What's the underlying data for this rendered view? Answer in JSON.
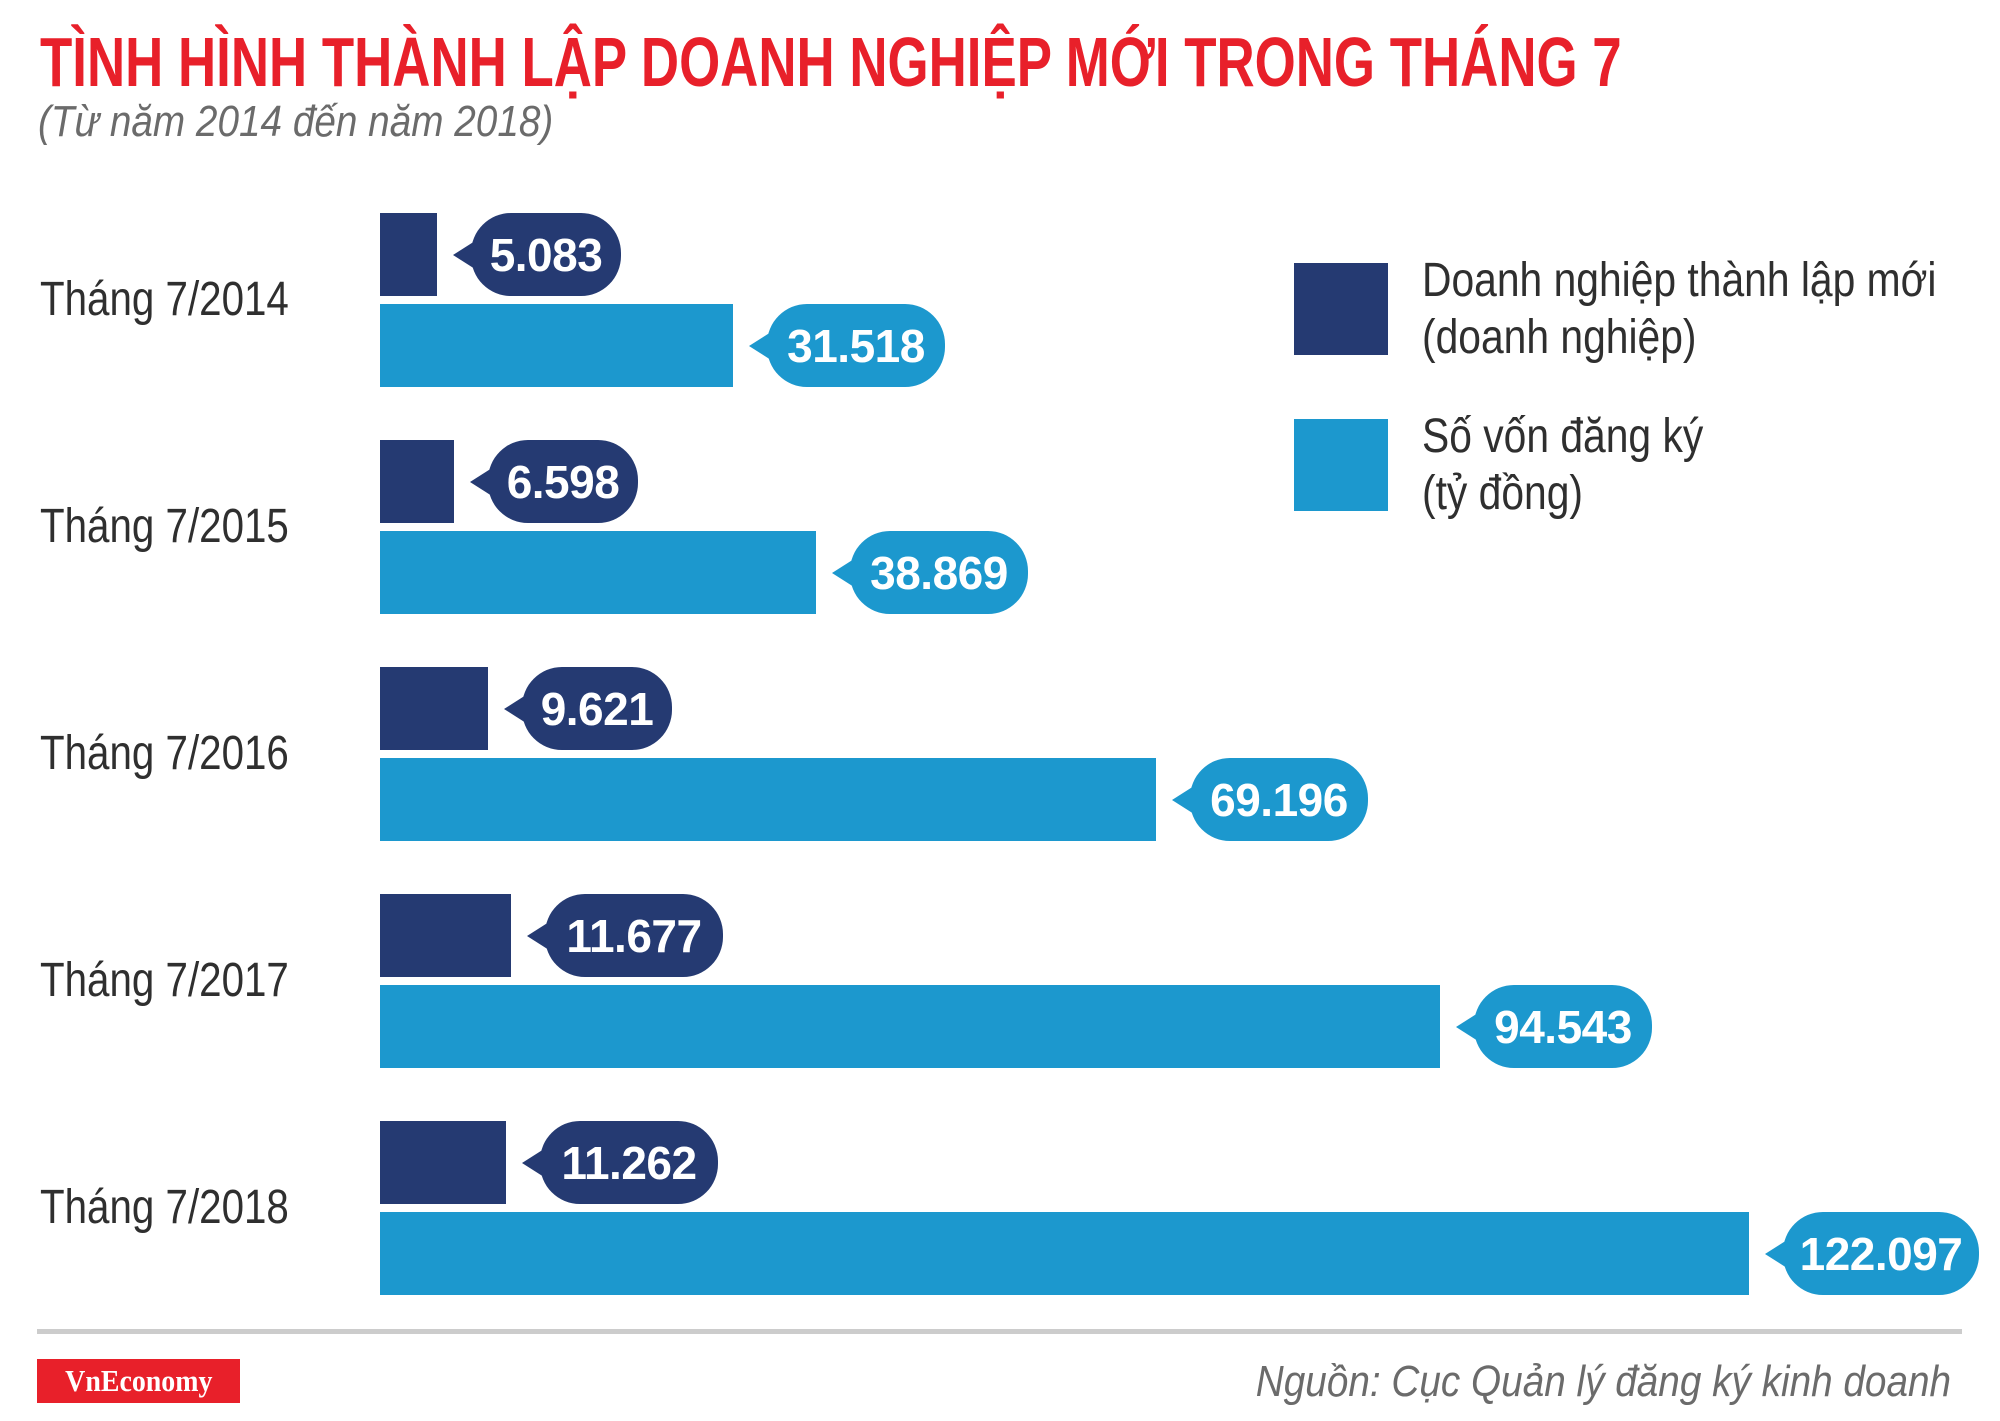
{
  "header": {
    "title": "TÌNH HÌNH THÀNH LẬP DOANH NGHIỆP MỚI TRONG THÁNG 7",
    "subtitle": "(Từ năm 2014 đến năm 2018)"
  },
  "legend": {
    "items": [
      {
        "line1": "Doanh nghiệp thành lập mới",
        "line2": "(doanh nghiệp)",
        "color": "#253A72"
      },
      {
        "line1": "Số vốn đăng ký",
        "line2": "(tỷ đồng)",
        "color": "#1C98CE"
      }
    ]
  },
  "footer": {
    "logo": "VnEconomy",
    "source": "Nguồn: Cục Quản lý đăng ký kinh doanh"
  },
  "colors": {
    "title": "#E8202A",
    "series_new_businesses": "#253A72",
    "series_registered_capital": "#1C98CE",
    "divider": "#CCCCCC"
  },
  "chart_data": {
    "type": "bar",
    "orientation": "horizontal",
    "title": "TÌNH HÌNH THÀNH LẬP DOANH NGHIỆP MỚI TRONG THÁNG 7",
    "subtitle": "(Từ năm 2014 đến năm 2018)",
    "categories": [
      "Tháng 7/2014",
      "Tháng 7/2015",
      "Tháng 7/2016",
      "Tháng 7/2017",
      "Tháng 7/2018"
    ],
    "series": [
      {
        "name": "Doanh nghiệp thành lập mới (doanh nghiệp)",
        "values": [
          5083,
          6598,
          9621,
          11677,
          11262
        ],
        "labels": [
          "5.083",
          "6.598",
          "9.621",
          "11.677",
          "11.262"
        ],
        "color": "#253A72"
      },
      {
        "name": "Số vốn đăng ký (tỷ đồng)",
        "values": [
          31518,
          38869,
          69196,
          94543,
          122097
        ],
        "labels": [
          "31.518",
          "38.869",
          "69.196",
          "94.543",
          "122.097"
        ],
        "color": "#1C98CE"
      }
    ],
    "xlabel": "",
    "ylabel": "",
    "grid": false,
    "legend_position": "top-right",
    "data_labels": true,
    "source": "Nguồn: Cục Quản lý đăng ký kinh doanh"
  }
}
